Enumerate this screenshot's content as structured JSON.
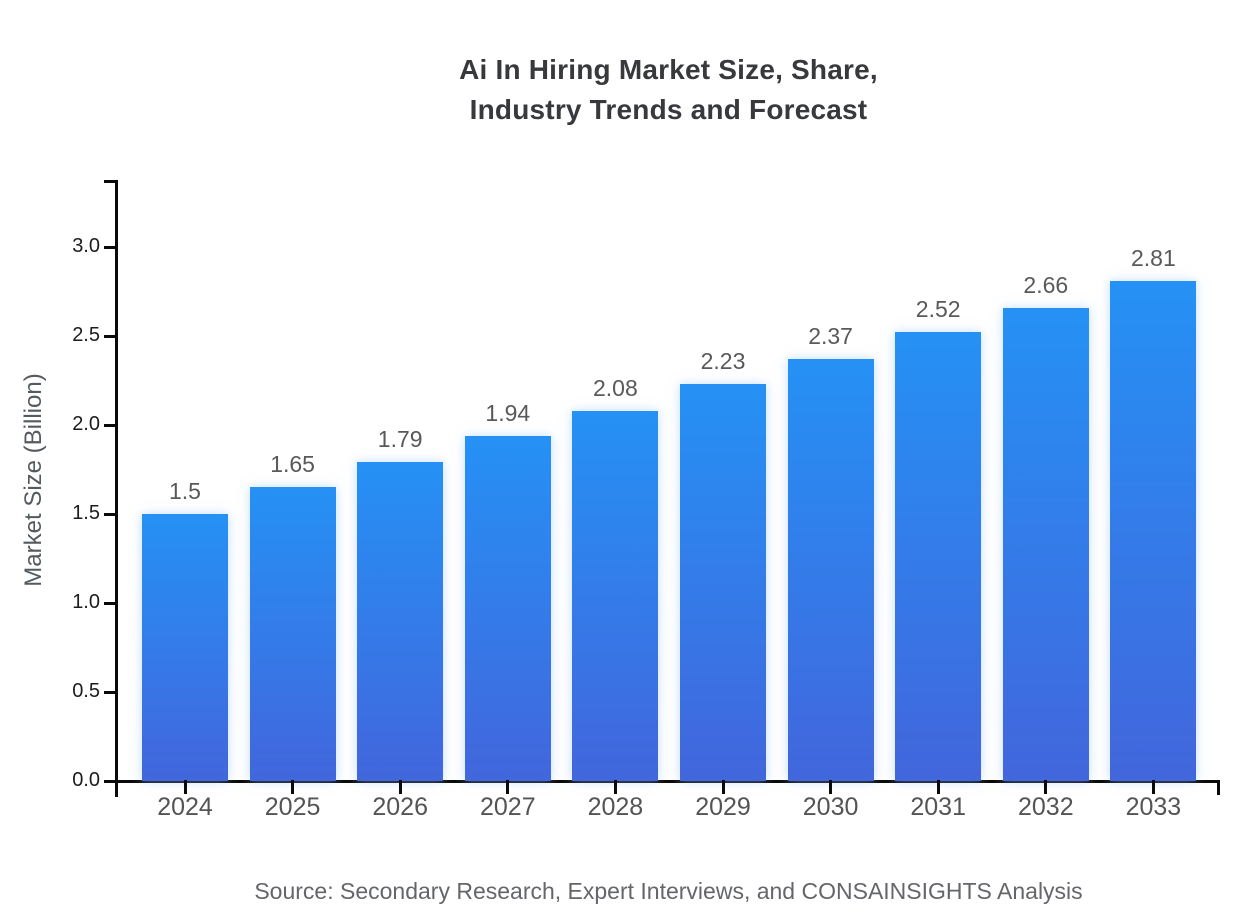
{
  "title": {
    "line1": "Ai In Hiring Market Size, Share,",
    "line2": "Industry Trends and Forecast"
  },
  "chart_data": {
    "type": "bar",
    "title": "Ai In Hiring Market Size, Share, Industry Trends and Forecast",
    "categories": [
      "2024",
      "2025",
      "2026",
      "2027",
      "2028",
      "2029",
      "2030",
      "2031",
      "2032",
      "2033"
    ],
    "values": [
      1.5,
      1.65,
      1.79,
      1.94,
      2.08,
      2.23,
      2.37,
      2.52,
      2.66,
      2.81
    ],
    "value_labels": [
      "1.5",
      "1.65",
      "1.79",
      "1.94",
      "2.08",
      "2.23",
      "2.37",
      "2.52",
      "2.66",
      "2.81"
    ],
    "xlabel": "",
    "ylabel": "Market Size (Billion)",
    "yticks": [
      0.0,
      0.5,
      1.0,
      1.5,
      2.0,
      2.5,
      3.0
    ],
    "ytick_labels": [
      "0.0",
      "0.5",
      "1.0",
      "1.5",
      "2.0",
      "2.5",
      "3.0"
    ],
    "ylim": [
      0,
      3.37
    ],
    "grid": false,
    "legend": false,
    "bar_color_top": "#2591f5",
    "bar_color_bottom": "#4266dc"
  },
  "source": {
    "text": "Source: Secondary Research, Expert Interviews, and CONSAINSIGHTS Analysis"
  },
  "colors": {
    "background": "#ffffff",
    "axis": "#0a0a0a",
    "title_text": "#37393c",
    "tick_text": "#1c1c1e",
    "category_text": "#545456",
    "value_text": "#58595b",
    "source_text": "#64666a"
  }
}
